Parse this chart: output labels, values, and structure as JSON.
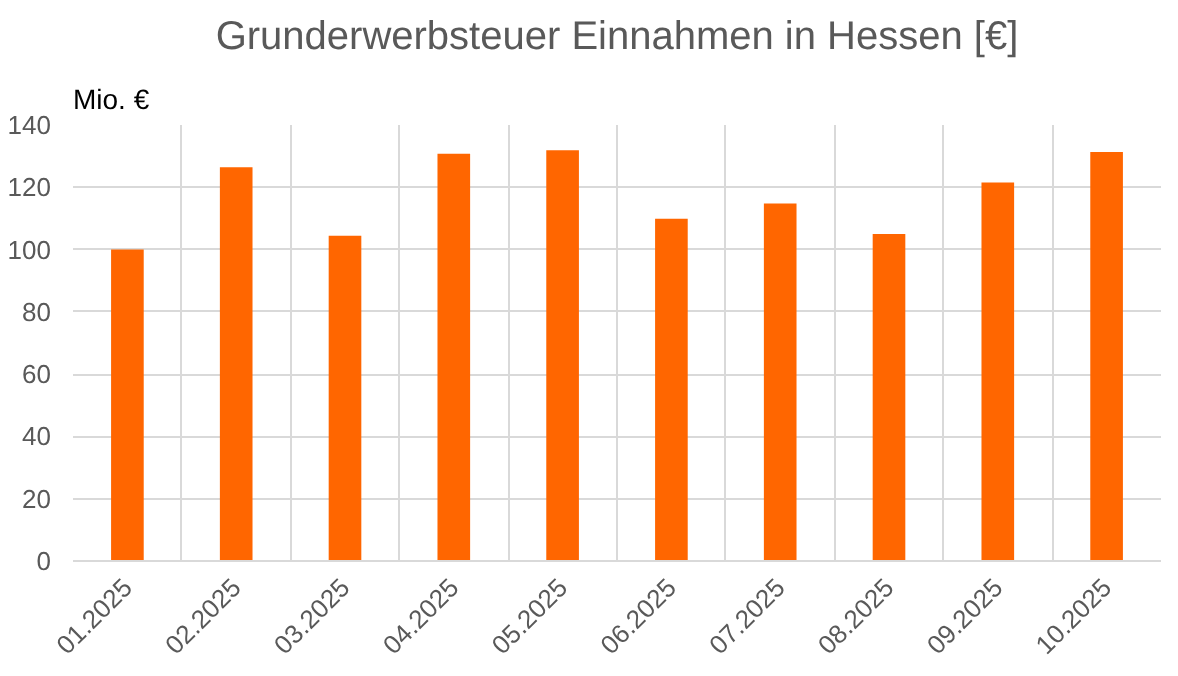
{
  "chart_data": {
    "type": "bar",
    "title": "Grunderwerbsteuer Einnahmen in Hessen [€]",
    "ylabel": "Mio. €",
    "categories": [
      "01.2025",
      "02.2025",
      "03.2025",
      "04.2025",
      "05.2025",
      "06.2025",
      "07.2025",
      "08.2025",
      "09.2025",
      "10.2025"
    ],
    "values": [
      100,
      126.4,
      104.4,
      130.8,
      131.9,
      109.9,
      114.8,
      105,
      121.5,
      131.3
    ],
    "color": "#ff6600",
    "ylim": [
      0,
      140
    ],
    "yticks": [
      0,
      20,
      40,
      60,
      80,
      100,
      120,
      140
    ],
    "grid": true
  }
}
